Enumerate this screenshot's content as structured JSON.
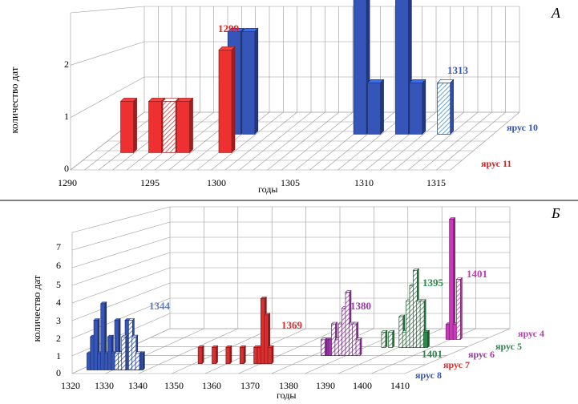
{
  "chart_data": [
    {
      "type": "bar",
      "panel_label": "А",
      "xlabel": "годы",
      "ylabel": "количество дат",
      "x_ticks": [
        "1290",
        "1295",
        "1300",
        "1305",
        "1310",
        "1315"
      ],
      "y_ticks": [
        "0",
        "1",
        "2"
      ],
      "xlim": [
        1290,
        1317
      ],
      "ylim": [
        0,
        3
      ],
      "grid": true,
      "series": [
        {
          "name": "ярус 10",
          "color": "#3556b8",
          "points": [
            {
              "x": 1298,
              "y": 2
            },
            {
              "x": 1299,
              "y": 2
            },
            {
              "x": 1307,
              "y": 3
            },
            {
              "x": 1308,
              "y": 1
            },
            {
              "x": 1310,
              "y": 3
            },
            {
              "x": 1311,
              "y": 1
            },
            {
              "x": 1313,
              "y": 1,
              "hatched": true
            }
          ]
        },
        {
          "name": "ярус 11",
          "color": "#ee3030",
          "points": [
            {
              "x": 1292,
              "y": 1
            },
            {
              "x": 1294,
              "y": 1
            },
            {
              "x": 1295,
              "y": 1,
              "hatched": true
            },
            {
              "x": 1296,
              "y": 1
            },
            {
              "x": 1299,
              "y": 2
            }
          ]
        }
      ],
      "annotations": [
        {
          "text": "1299",
          "series": "ярус 11"
        },
        {
          "text": "1313",
          "series": "ярус 10"
        }
      ]
    },
    {
      "type": "bar",
      "panel_label": "Б",
      "xlabel": "годы",
      "ylabel": "количество дат",
      "x_ticks": [
        "1320",
        "1330",
        "1340",
        "1350",
        "1360",
        "1370",
        "1380",
        "1390",
        "1400",
        "1410"
      ],
      "y_ticks": [
        "0",
        "1",
        "2",
        "3",
        "4",
        "5",
        "6",
        "7"
      ],
      "xlim": [
        1320,
        1416
      ],
      "ylim": [
        0,
        8
      ],
      "grid": true,
      "series": [
        {
          "name": "ярус 8",
          "color": "#3556b8",
          "points": [
            {
              "x": 1322,
              "y": 1
            },
            {
              "x": 1323,
              "y": 2
            },
            {
              "x": 1324,
              "y": 3
            },
            {
              "x": 1325,
              "y": 1
            },
            {
              "x": 1326,
              "y": 4
            },
            {
              "x": 1327,
              "y": 1
            },
            {
              "x": 1328,
              "y": 2
            },
            {
              "x": 1329,
              "y": 1
            },
            {
              "x": 1330,
              "y": 3
            },
            {
              "x": 1331,
              "y": 1
            },
            {
              "x": 1333,
              "y": 3
            },
            {
              "x": 1334,
              "y": 1
            },
            {
              "x": 1335,
              "y": 2
            },
            {
              "x": 1336,
              "y": 1
            },
            {
              "x": 1337,
              "y": 1
            },
            {
              "x": 1330,
              "y": 1,
              "hatched": true
            },
            {
              "x": 1331,
              "y": 1,
              "hatched": true
            },
            {
              "x": 1332,
              "y": 2,
              "hatched": true
            },
            {
              "x": 1334,
              "y": 3,
              "hatched": true
            },
            {
              "x": 1335,
              "y": 2,
              "hatched": true
            },
            {
              "x": 1336,
              "y": 1,
              "hatched": true
            }
          ]
        },
        {
          "name": "ярус 7",
          "color": "#d63030",
          "points": [
            {
              "x": 1350,
              "y": 1
            },
            {
              "x": 1354,
              "y": 1
            },
            {
              "x": 1358,
              "y": 1
            },
            {
              "x": 1362,
              "y": 1
            },
            {
              "x": 1366,
              "y": 1
            },
            {
              "x": 1367,
              "y": 1
            },
            {
              "x": 1368,
              "y": 4
            },
            {
              "x": 1369,
              "y": 3
            },
            {
              "x": 1370,
              "y": 1
            }
          ]
        },
        {
          "name": "ярус 6",
          "color": "#9a3aa6",
          "points": [
            {
              "x": 1381,
              "y": 1
            },
            {
              "x": 1382,
              "y": 1
            },
            {
              "x": 1380,
              "y": 1,
              "hatched": true
            },
            {
              "x": 1383,
              "y": 2,
              "hatched": true
            },
            {
              "x": 1384,
              "y": 1,
              "hatched": true
            },
            {
              "x": 1385,
              "y": 2,
              "hatched": true
            },
            {
              "x": 1386,
              "y": 3,
              "hatched": true
            },
            {
              "x": 1387,
              "y": 4,
              "hatched": true
            },
            {
              "x": 1388,
              "y": 2,
              "hatched": true
            },
            {
              "x": 1389,
              "y": 2,
              "hatched": true
            },
            {
              "x": 1390,
              "y": 1,
              "hatched": true
            }
          ]
        },
        {
          "name": "ярус 5",
          "color": "#2e8a4a",
          "points": [
            {
              "x": 1392,
              "y": 1,
              "hatched": true
            },
            {
              "x": 1394,
              "y": 1,
              "hatched": true
            },
            {
              "x": 1397,
              "y": 2,
              "hatched": true
            },
            {
              "x": 1398,
              "y": 1,
              "hatched": true
            },
            {
              "x": 1399,
              "y": 3,
              "hatched": true
            },
            {
              "x": 1400,
              "y": 4,
              "hatched": true
            },
            {
              "x": 1401,
              "y": 5,
              "hatched": true
            },
            {
              "x": 1402,
              "y": 3,
              "hatched": true
            },
            {
              "x": 1403,
              "y": 3,
              "hatched": true
            },
            {
              "x": 1404,
              "y": 1
            }
          ]
        },
        {
          "name": "ярус 4",
          "color": "#c838b8",
          "points": [
            {
              "x": 1405,
              "y": 1
            },
            {
              "x": 1406,
              "y": 8
            },
            {
              "x": 1407,
              "y": 1
            },
            {
              "x": 1408,
              "y": 4,
              "hatched": true
            }
          ]
        }
      ],
      "annotations": [
        {
          "text": "1344",
          "series": "ярус 8"
        },
        {
          "text": "1369",
          "series": "ярус 7"
        },
        {
          "text": "1380",
          "series": "ярус 6"
        },
        {
          "text": "1395",
          "series": "ярус 5"
        },
        {
          "text": "1401",
          "series": "ярус 5"
        },
        {
          "text": "1401",
          "series": "ярус 4"
        }
      ]
    }
  ]
}
